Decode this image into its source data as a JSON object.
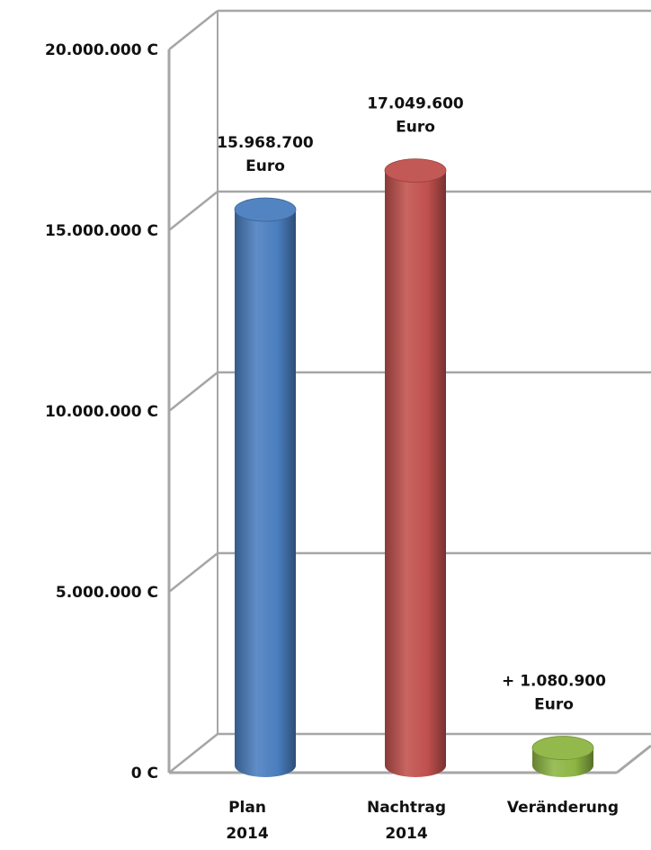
{
  "chart_data": {
    "type": "bar",
    "style": "3d-cylinder",
    "categories": [
      [
        "Plan",
        "2014"
      ],
      [
        "Nachtrag",
        "2014"
      ],
      [
        "Veränderung"
      ]
    ],
    "values": [
      15968700,
      17049600,
      1080900
    ],
    "data_labels": [
      [
        "15.968.700",
        "Euro"
      ],
      [
        "17.049.600",
        "Euro"
      ],
      [
        "+ 1.080.900",
        "Euro"
      ]
    ],
    "colors": [
      "#4a7ebf",
      "#c0504d",
      "#8db543"
    ],
    "y_ticks": [
      "0 C",
      "5.000.000 C",
      "10.000.000 C",
      "15.000.000 C",
      "20.000.000 C"
    ],
    "ylim": [
      0,
      20000000
    ],
    "grid": true,
    "legend": "none"
  }
}
